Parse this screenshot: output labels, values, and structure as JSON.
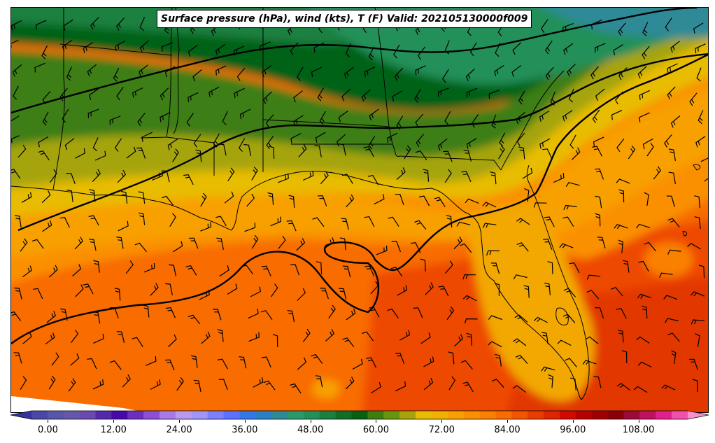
{
  "title": "Surface pressure (hPa), wind (kts), T (F) Valid: 202105130000f009",
  "colorbar": {
    "min": -6,
    "max": 120,
    "step": 3,
    "tick_labels": [
      "0.00",
      "12.00",
      "24.00",
      "36.00",
      "48.00",
      "60.00",
      "72.00",
      "84.00",
      "96.00",
      "108.00"
    ],
    "tick_values": [
      0,
      12,
      24,
      36,
      48,
      60,
      72,
      84,
      96,
      108
    ],
    "colors": [
      "#34349a",
      "#4a47a6",
      "#5756a8",
      "#6558ab",
      "#6a4ab0",
      "#5529ab",
      "#4a08a8",
      "#6b2fc0",
      "#8a50d8",
      "#a77ae8",
      "#b89af0",
      "#a096f8",
      "#7b80ff",
      "#5a72ff",
      "#3478e8",
      "#2a80c8",
      "#2e8a96",
      "#2a9a6c",
      "#229058",
      "#1a8040",
      "#0f6e2a",
      "#066212",
      "#3c7e12",
      "#66960e",
      "#a6a40a",
      "#e8bc02",
      "#f2b000",
      "#f8a000",
      "#fa9000",
      "#fa8000",
      "#f86c00",
      "#f25400",
      "#e83c00",
      "#de2400",
      "#d00a00",
      "#b80000",
      "#a00000",
      "#8a0008",
      "#9c0a38",
      "#c01060",
      "#e0208c",
      "#f050b0",
      "#f890d0"
    ]
  },
  "map_region": "Gulf of Mexico / Southeast US"
}
